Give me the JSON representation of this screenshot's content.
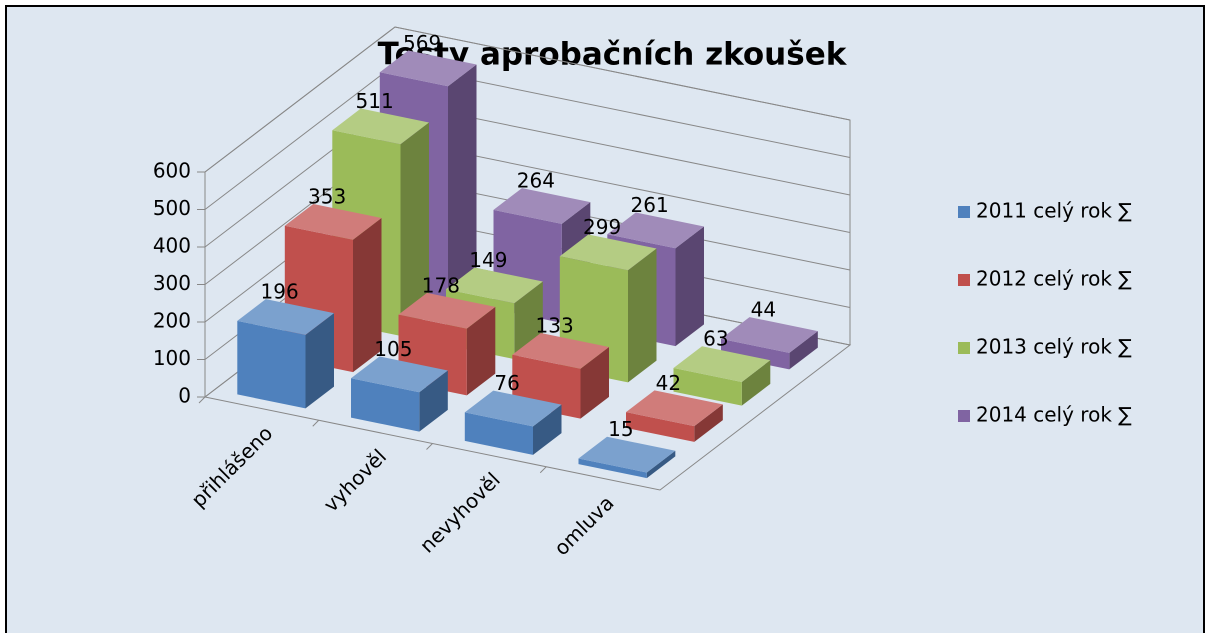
{
  "chart_data": {
    "type": "bar3d",
    "title": "Testy aprobačních zkoušek",
    "categories": [
      "přihlášeno",
      "vyhověl",
      "nevyhověl",
      "omluva"
    ],
    "series": [
      {
        "name": "2011 celý rok ∑",
        "color": "#4f81bd",
        "values": [
          196,
          105,
          76,
          15
        ]
      },
      {
        "name": "2012 celý rok ∑",
        "color": "#c0504d",
        "values": [
          353,
          178,
          133,
          42
        ]
      },
      {
        "name": "2013 celý rok ∑",
        "color": "#9bbb59",
        "values": [
          511,
          149,
          299,
          63
        ]
      },
      {
        "name": "2014 celý rok ∑",
        "color": "#8064a2",
        "values": [
          569,
          264,
          261,
          44
        ]
      }
    ],
    "ylim": [
      0,
      600
    ],
    "yticks": [
      0,
      100,
      200,
      300,
      400,
      500,
      600
    ],
    "grid": true,
    "legend": "right"
  }
}
